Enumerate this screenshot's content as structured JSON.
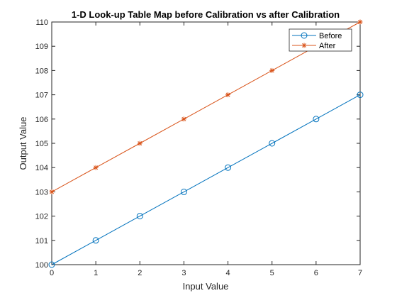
{
  "chart_data": {
    "type": "line",
    "title": "1-D Look-up Table Map before Calibration vs after Calibration",
    "xlabel": "Input Value",
    "ylabel": "Output Value",
    "xlim": [
      0,
      7
    ],
    "ylim": [
      100,
      110
    ],
    "xticks": [
      0,
      1,
      2,
      3,
      4,
      5,
      6,
      7
    ],
    "yticks": [
      100,
      101,
      102,
      103,
      104,
      105,
      106,
      107,
      108,
      109,
      110
    ],
    "grid": false,
    "legend_position": "top-right",
    "x": [
      0,
      1,
      2,
      3,
      4,
      5,
      6,
      7
    ],
    "series": [
      {
        "name": "Before",
        "values": [
          100,
          101,
          102,
          103,
          104,
          105,
          106,
          107
        ],
        "color": "#0072BD",
        "marker": "circle"
      },
      {
        "name": "After",
        "values": [
          103,
          104,
          105,
          106,
          107,
          108,
          109,
          110
        ],
        "color": "#D95319",
        "marker": "asterisk"
      }
    ]
  }
}
